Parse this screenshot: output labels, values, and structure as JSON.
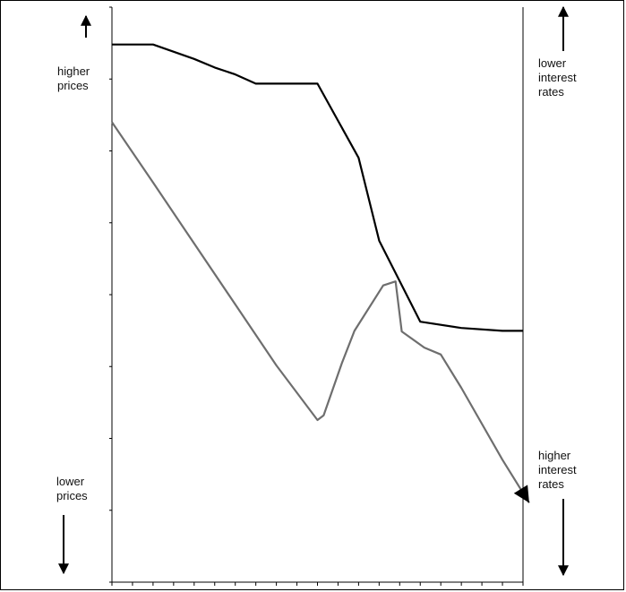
{
  "chart_data": {
    "type": "line",
    "title": "",
    "xlabel": "",
    "ylabel": "",
    "grid": false,
    "x": [
      0,
      1,
      2,
      3,
      4,
      5,
      6,
      7,
      8,
      9,
      10,
      11,
      12,
      13,
      14,
      15,
      16,
      17,
      18,
      19,
      20
    ],
    "ylim": [
      0,
      100
    ],
    "series": [
      {
        "color": "#000000",
        "points": [
          [
            0,
            93.5
          ],
          [
            2,
            93.5
          ],
          [
            4,
            91
          ],
          [
            5,
            89.5
          ],
          [
            6,
            88.3
          ],
          [
            7,
            86.7
          ],
          [
            8,
            86.7
          ],
          [
            10,
            86.7
          ],
          [
            12,
            73.8
          ],
          [
            13,
            59.4
          ],
          [
            15,
            45.3
          ],
          [
            17,
            44.2
          ],
          [
            19,
            43.7
          ],
          [
            20,
            43.7
          ]
        ]
      },
      {
        "color": "#6e6e6e",
        "points": [
          [
            0,
            80
          ],
          [
            2,
            69.5
          ],
          [
            4,
            58.9
          ],
          [
            6,
            48.3
          ],
          [
            8,
            37.7
          ],
          [
            10,
            28.2
          ],
          [
            10.3,
            29
          ],
          [
            11.2,
            38.2
          ],
          [
            11.8,
            43.7
          ],
          [
            13.2,
            51.6
          ],
          [
            13.8,
            52.3
          ],
          [
            14.1,
            43.6
          ],
          [
            15.2,
            40.8
          ],
          [
            16,
            39.6
          ],
          [
            17,
            33.8
          ],
          [
            19,
            21.3
          ],
          [
            20.3,
            13.8
          ]
        ]
      }
    ],
    "annotations": {
      "left_top": [
        "higher",
        "prices"
      ],
      "left_bottom": [
        "lower",
        "prices"
      ],
      "right_top": [
        "lower",
        "interest",
        "rates"
      ],
      "right_bottom": [
        "higher",
        "interest",
        "rates"
      ]
    }
  }
}
